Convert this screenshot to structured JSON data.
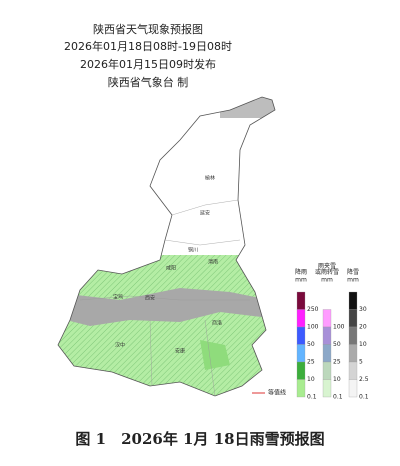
{
  "header": {
    "title": "陕西省天气现象预报图",
    "time_range": "2026年01月18日08时-19日08时",
    "issued": "2026年01月15日09时发布",
    "issuer": "陕西省气象台 制"
  },
  "cities": [
    "榆林",
    "延安",
    "铜川",
    "渭南",
    "咸阳",
    "宝鸡",
    "西安",
    "商洛",
    "汉中",
    "安康"
  ],
  "legend": {
    "rain": {
      "title": "降雨",
      "unit": "mm",
      "levels": [
        250,
        100,
        50,
        25,
        10,
        0.1
      ]
    },
    "sleet": {
      "title": "雨夹雪\n或雨转雪",
      "unit": "mm",
      "levels": [
        100,
        50,
        25,
        10,
        0.1
      ]
    },
    "snow": {
      "title": "降雪",
      "unit": "mm",
      "levels": [
        30,
        20,
        10,
        5,
        2.5,
        0.1
      ]
    },
    "isoline": "等值线"
  },
  "caption": "图 1　2026年 1月 18日雨雪预报图"
}
